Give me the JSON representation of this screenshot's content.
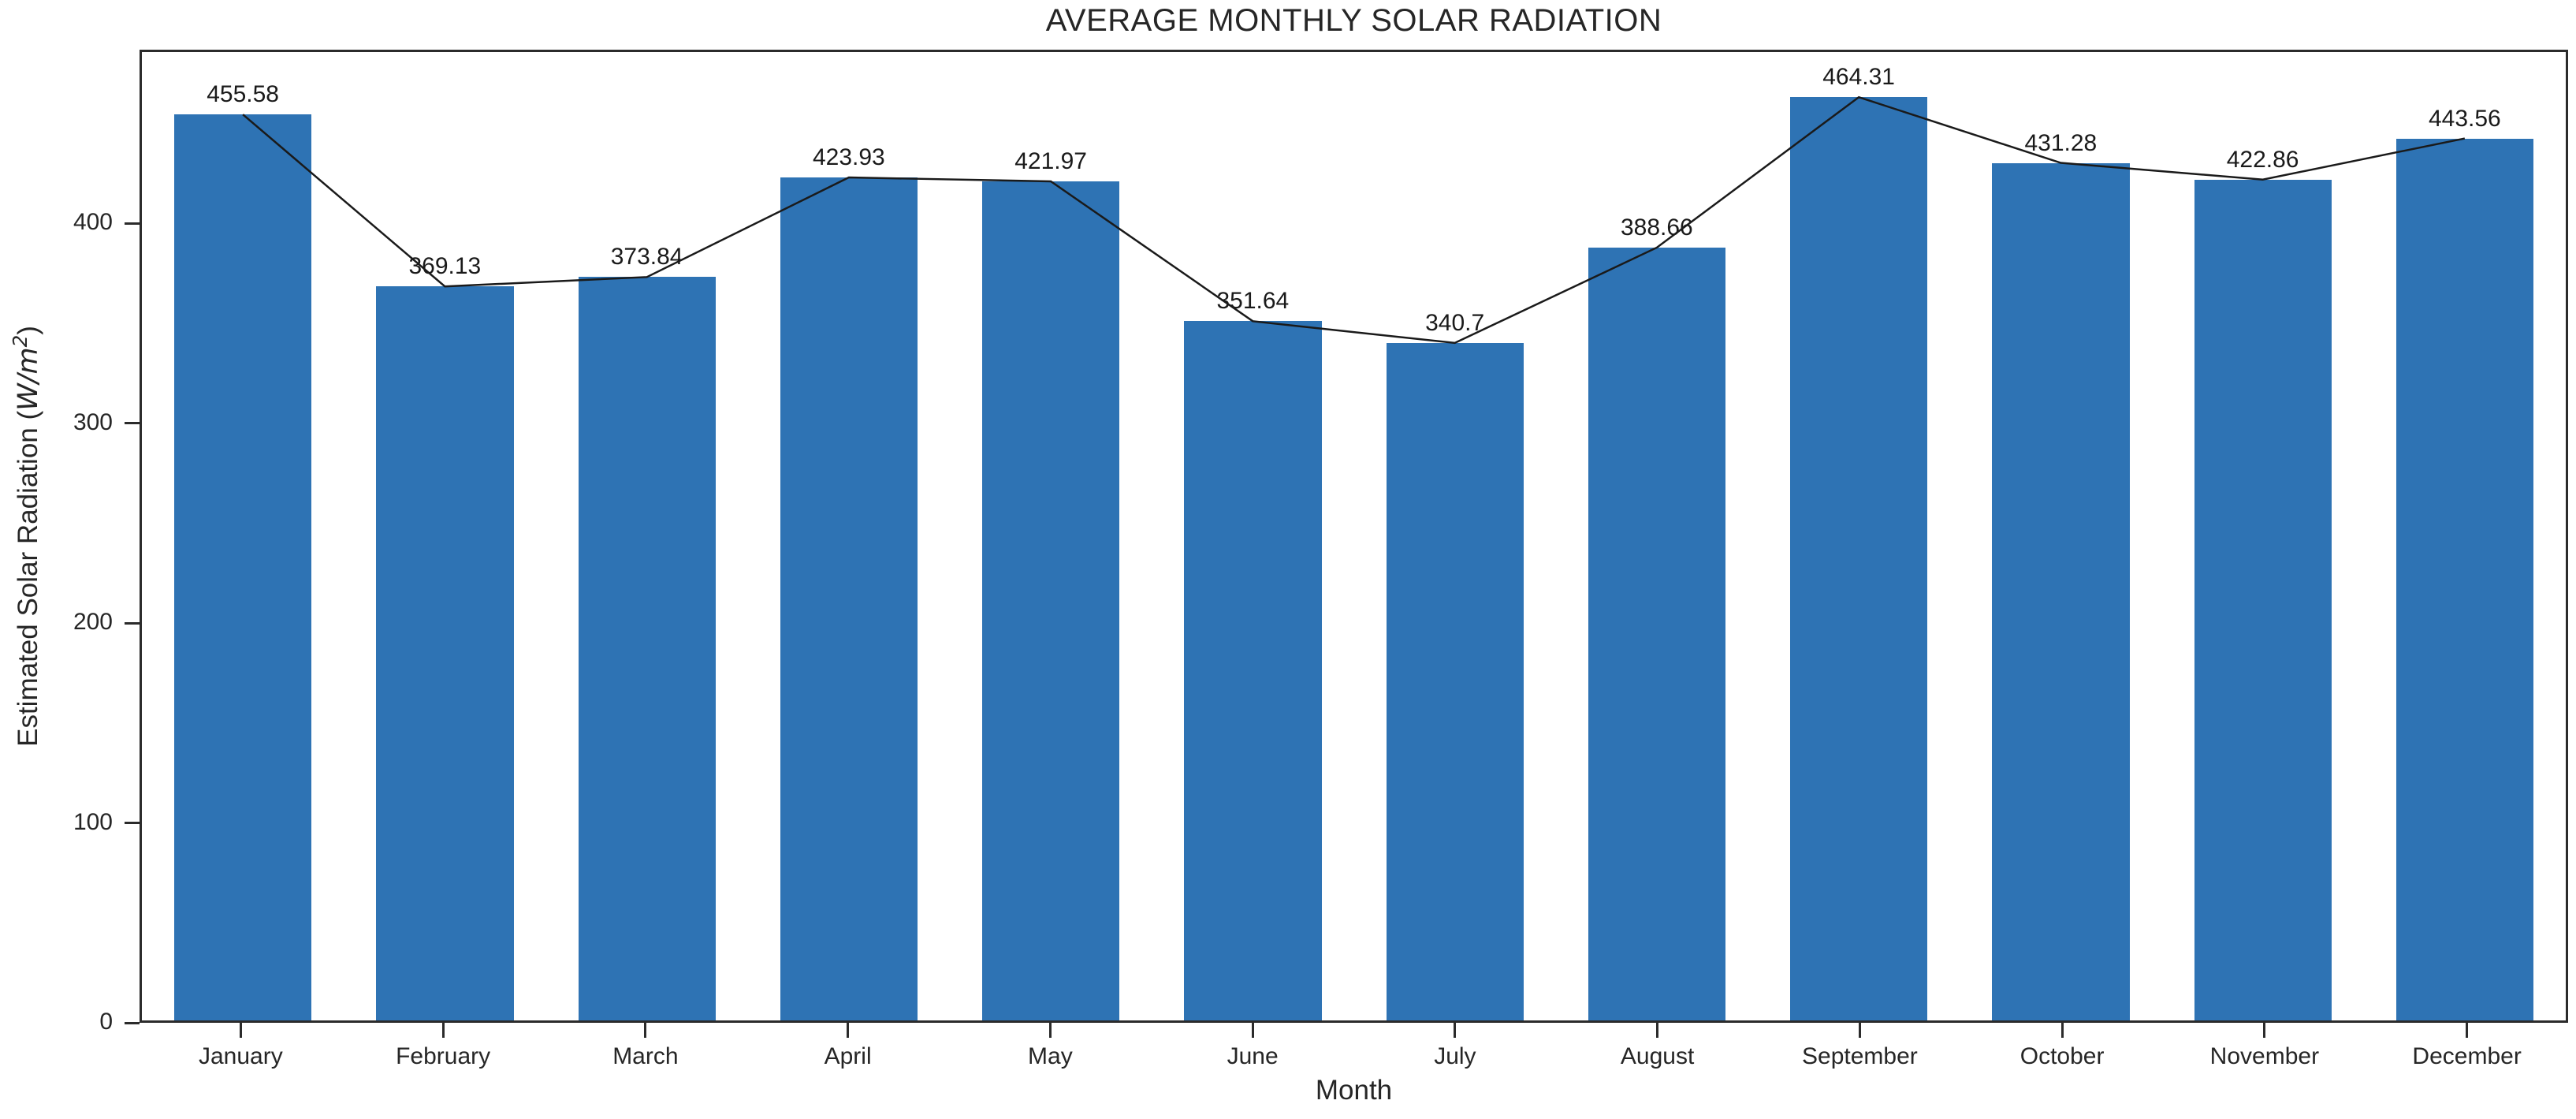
{
  "title": "AVERAGE MONTHLY SOLAR RADIATION",
  "chart_data": {
    "type": "bar",
    "title": "AVERAGE MONTHLY SOLAR RADIATION",
    "categories": [
      "January",
      "February",
      "March",
      "April",
      "May",
      "June",
      "July",
      "August",
      "September",
      "October",
      "November",
      "December"
    ],
    "values": [
      455.58,
      369.13,
      373.84,
      423.93,
      421.97,
      351.64,
      340.7,
      388.66,
      464.31,
      431.28,
      422.86,
      443.56
    ],
    "value_labels": [
      "455.58",
      "369.13",
      "373.84",
      "423.93",
      "421.97",
      "351.64",
      "340.7",
      "388.66",
      "464.31",
      "431.28",
      "422.86",
      "443.56"
    ],
    "line_overlay_on_bar_tops": true,
    "xlabel": "Month",
    "ylabel": "Estimated Solar Radiation (W/m²)",
    "ylabel_parts": {
      "prefix": "Estimated Solar Radiation (",
      "unit": "W/m",
      "sup": "2",
      "suffix": ")"
    },
    "yticks": [
      0,
      100,
      200,
      300,
      400
    ],
    "ylim": [
      0,
      487
    ],
    "grid": false,
    "legend": "none",
    "bar_color": "#2e73b4",
    "line_color": "#1a1a1a",
    "frame_color": "#2b2b2b"
  }
}
